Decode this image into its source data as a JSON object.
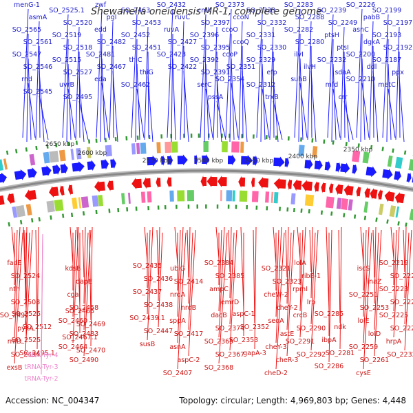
{
  "title": "Shewanella oneidensis MR-1, complete genome",
  "footer": {
    "accession": "Accession: NC_004347",
    "topology": "Topology: circular; Length: 4,969,803 bp; Genes: 4,448"
  },
  "colors": {
    "forward": "#1a1aff",
    "reverse": "#ee1111",
    "trna": "#ee88cc",
    "backbone": "#888888",
    "tick": "#339933"
  },
  "ruler_labels": [
    "2650 kbp",
    "2600 kbp",
    "2550 kbp",
    "2500 kbp",
    "2450 kbp",
    "2400 kbp",
    "2350 kbp"
  ],
  "forward_genes": [
    "menG-1",
    "asmA",
    "SO_2565",
    "SO_2561",
    "SO_2547",
    "SO_2546",
    "rnd",
    "SO_2545",
    "SO_2525.1",
    "SO_2520",
    "SO_2519",
    "SO_2518",
    "SO_2515",
    "SO_2527",
    "uvrB",
    "SO_2495",
    "zwf",
    "pgl",
    "edd",
    "SO_2482",
    "SO_2481",
    "SO_2467",
    "eda",
    "SO_2463",
    "SO_2453",
    "SO_2452",
    "SO_2451",
    "thiC",
    "thiG",
    "SO_2462",
    "SO_2432",
    "ruvC",
    "ruvA",
    "SO_2427",
    "SO_2423",
    "SO_2422",
    "cmk",
    "SO_2397",
    "SO_2396",
    "SO_2395",
    "SO_2392",
    "SO_2391",
    "serC",
    "pssA",
    "SO_2373",
    "ccoN",
    "ccoO",
    "ccoQ",
    "ccoP",
    "SO_2351",
    "SO_2354",
    "SO_2333",
    "SO_2332",
    "SO_2331",
    "SO_2330",
    "SO_2329",
    "efp",
    "SO_2312",
    "trxB",
    "SO_2283",
    "SO_2288",
    "SO_2282",
    "SO_2280",
    "ilvI",
    "ilvH",
    "suhB",
    "SO_2239",
    "SO_2249",
    "ptsH",
    "ptsI",
    "SO_2232",
    "sdaA",
    "mfd",
    "crr",
    "SO_2226",
    "pabB",
    "asnC",
    "dgkA",
    "SO_2200",
    "ddl",
    "SO_2210",
    "SO_2199",
    "SO_2197",
    "SO_2193",
    "SO_2192",
    "SO_2187",
    "ppx",
    "metC"
  ],
  "reverse_genes": [
    "fadE",
    "SO_2524",
    "nth",
    "SO_2508",
    "SO_2497",
    "pykA",
    "rnfD",
    "SO_2494",
    "exsB",
    "SO_2525",
    "SO_2512",
    "SO_2525",
    "SO_2495.1",
    "kdsB",
    "dapE",
    "cga",
    "SO_2458",
    "SO_2460",
    "SO_2483",
    "SO_2464",
    "SO_2490",
    "SO_2465",
    "SO_2469",
    "SO_2467.1",
    "SO_2470",
    "SO_2435",
    "SO_2436",
    "SO_2437",
    "SO_2438",
    "SO_2439.1",
    "SO_2447",
    "susB",
    "ubiG",
    "SO_2414",
    "nrdA",
    "nrdB",
    "sppA",
    "SO_2417",
    "asnA",
    "aspC-2",
    "SO_2407",
    "SO_2384",
    "SO_2385",
    "ampC",
    "emrD",
    "dacB",
    "SO_2374",
    "SO_2365",
    "SO_2367",
    "SO_2368",
    "aspC-1",
    "SO_2352",
    "SO_2353",
    "gapA-3",
    "SO_2321",
    "SO_2323",
    "cheW-2",
    "cheY-2",
    "seqA",
    "astE",
    "cheY-3",
    "cheR-3",
    "cheD-2",
    "lolA",
    "ribE-1",
    "rpmI",
    "lrp",
    "crcB",
    "SO_2290",
    "SO_2291",
    "SO_2292",
    "SO_2285",
    "ndk",
    "ibpA",
    "SO_2281",
    "SO_2286",
    "iscS",
    "inaZ",
    "SO_2251",
    "SO_2253",
    "lolE",
    "lolD",
    "SO_2259",
    "SO_2261",
    "cysE",
    "SO_2219",
    "SO_2222",
    "SO_2223",
    "SO_2224",
    "SO_2225",
    "SO_2228",
    "hrpA",
    "SO_2232.1"
  ],
  "trna_genes": [
    "tRNA-Tyr-4",
    "tRNA-Tyr-3",
    "tRNA-Tyr-2"
  ]
}
